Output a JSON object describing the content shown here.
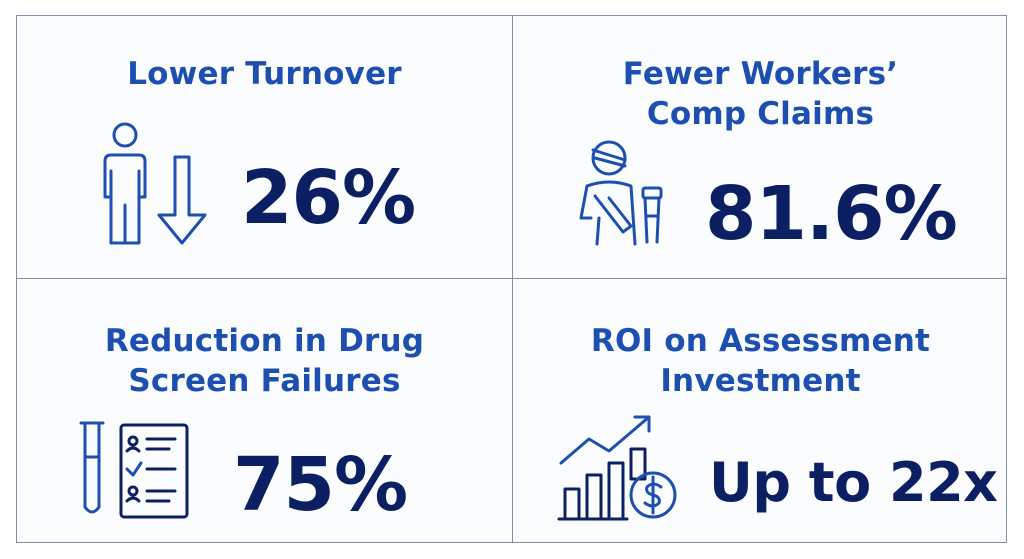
{
  "cards": [
    {
      "title": "Lower Turnover",
      "value": "26%",
      "icon": "person-down-arrow-icon"
    },
    {
      "title": "Fewer Workers’\nComp Claims",
      "value": "81.6%",
      "icon": "injured-worker-icon"
    },
    {
      "title": "Reduction in Drug\nScreen Failures",
      "value": "75%",
      "icon": "test-tube-checklist-icon"
    },
    {
      "title": "ROI on Assessment\nInvestment",
      "value": "Up to 22x",
      "icon": "growth-chart-dollar-icon"
    }
  ],
  "colors": {
    "title": "#1c4fb0",
    "value": "#0d1f63",
    "border": "#7f8fa8"
  }
}
